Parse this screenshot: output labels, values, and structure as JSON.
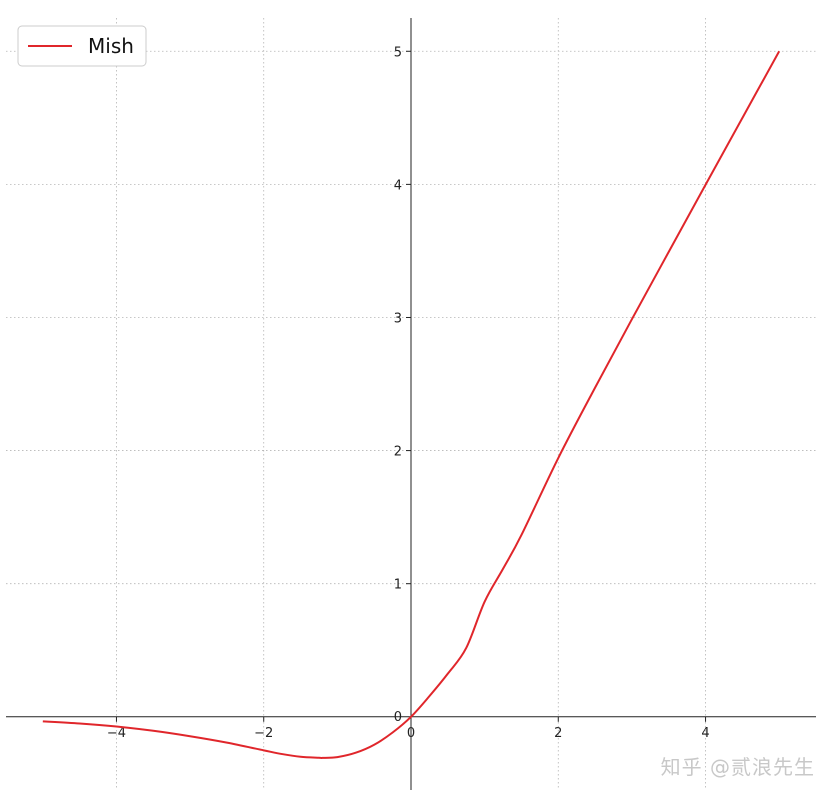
{
  "chart_data": {
    "type": "line",
    "title": "",
    "xlabel": "",
    "ylabel": "",
    "xlim": [
      -5.5,
      5.5
    ],
    "ylim": [
      -0.55,
      5.25
    ],
    "xticks": [
      -4,
      -2,
      0,
      2,
      4
    ],
    "xtick_labels": [
      "−4",
      "−2",
      "0",
      "2",
      "4"
    ],
    "yticks": [
      1,
      2,
      3,
      4,
      5
    ],
    "ytick_labels": [
      "1",
      "2",
      "3",
      "4",
      "5"
    ],
    "origin_label": "0",
    "grid": true,
    "legend_position": "top-left",
    "series": [
      {
        "name": "Mish",
        "color": "#e0262b",
        "x": [
          -5,
          -4.5,
          -4,
          -3.5,
          -3,
          -2.5,
          -2,
          -1.75,
          -1.5,
          -1.25,
          -1.2,
          -1,
          -0.75,
          -0.5,
          -0.25,
          0,
          0.25,
          0.5,
          0.75,
          1,
          1.25,
          1.5,
          2,
          2.5,
          3,
          3.5,
          4,
          4.5,
          5
        ],
        "y": [
          -0.034,
          -0.05,
          -0.073,
          -0.105,
          -0.146,
          -0.194,
          -0.252,
          -0.28,
          -0.3,
          -0.308,
          -0.309,
          -0.303,
          -0.27,
          -0.21,
          -0.118,
          0.0,
          0.155,
          0.324,
          0.517,
          0.865,
          1.112,
          1.366,
          1.944,
          2.473,
          2.987,
          3.493,
          3.997,
          4.499,
          5.0
        ]
      }
    ]
  },
  "watermark": "知乎 @贰浪先生"
}
